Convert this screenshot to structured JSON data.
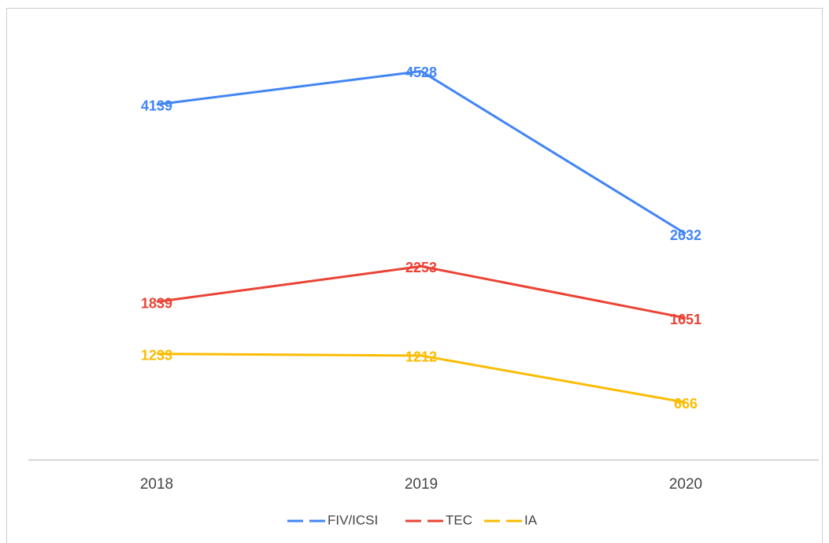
{
  "chart_data": {
    "type": "line",
    "categories": [
      "2018",
      "2019",
      "2020"
    ],
    "series": [
      {
        "name": "FIV/ICSI",
        "color": "#4285f4",
        "values": [
          4139,
          4528,
          2632
        ]
      },
      {
        "name": "TEC",
        "color": "#ea4335",
        "values": [
          1839,
          2253,
          1651
        ]
      },
      {
        "name": "IA",
        "color": "#fbbc04",
        "values": [
          1233,
          1212,
          666
        ]
      }
    ],
    "ylim": [
      0,
      5000
    ],
    "legend": "bottom"
  }
}
